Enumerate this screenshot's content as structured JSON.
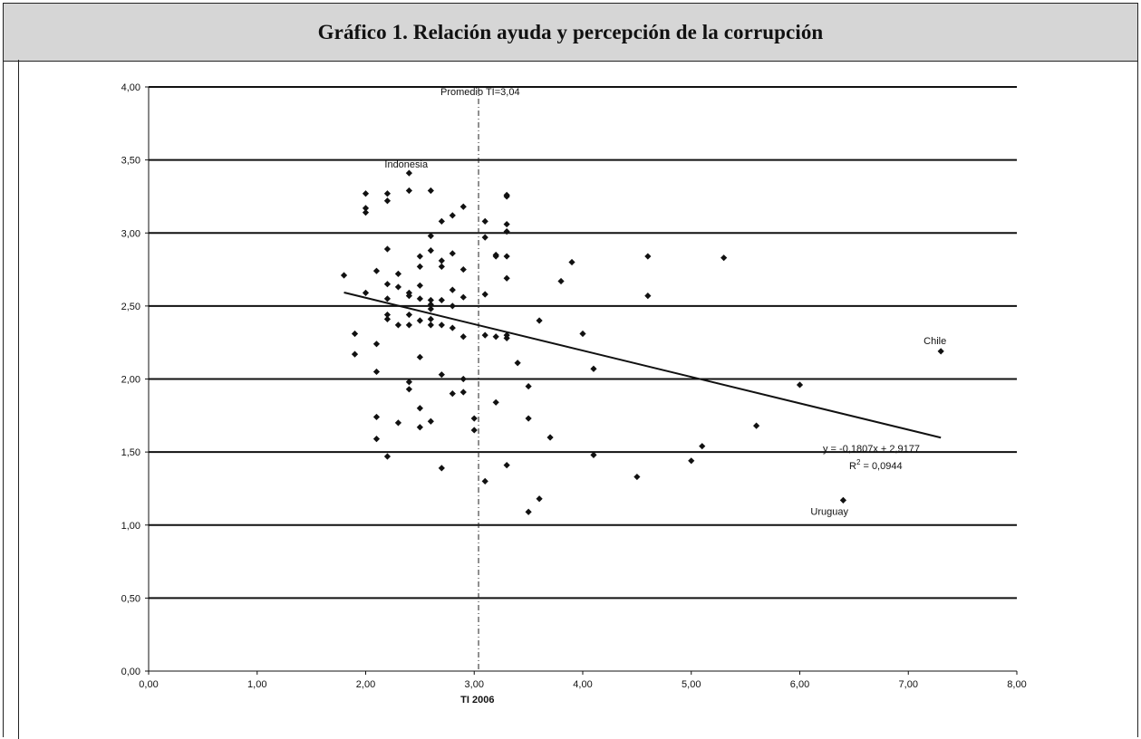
{
  "chart_data": {
    "type": "scatter",
    "title": "Gráfico 1. Relación ayuda y percepción de la corrupción",
    "xlabel": "TI 2006",
    "ylabel": "",
    "xlim": [
      0,
      8
    ],
    "ylim": [
      0,
      4
    ],
    "x_ticks": [
      "0,00",
      "1,00",
      "2,00",
      "3,00",
      "4,00",
      "5,00",
      "6,00",
      "7,00",
      "8,00"
    ],
    "y_ticks": [
      "0,00",
      "0,50",
      "1,00",
      "1,50",
      "2,00",
      "2,50",
      "3,00",
      "3,50",
      "4,00"
    ],
    "grid": "horizontal",
    "reference_line": {
      "x": 3.04,
      "label": "Promedio TI=3,04"
    },
    "trendline": {
      "slope": -0.1807,
      "intercept": 2.9177,
      "x_range": [
        1.8,
        7.3
      ],
      "equation": "y = -0,1807x + 2,9177",
      "r2_prefix": "R",
      "r2_exp": "2",
      "r2_value": " = 0,0944"
    },
    "annotations": [
      {
        "text": "Indonesia",
        "x": 2.4,
        "y": 3.41
      },
      {
        "text": "Chile",
        "x": 7.3,
        "y": 2.19
      },
      {
        "text": "Uruguay",
        "x": 6.4,
        "y": 1.17
      }
    ],
    "series": [
      {
        "points": [
          [
            1.8,
            2.71
          ],
          [
            1.9,
            2.31
          ],
          [
            1.9,
            2.17
          ],
          [
            2.0,
            3.27
          ],
          [
            2.0,
            3.17
          ],
          [
            2.0,
            3.14
          ],
          [
            2.0,
            2.59
          ],
          [
            2.1,
            2.74
          ],
          [
            2.1,
            2.24
          ],
          [
            2.1,
            2.05
          ],
          [
            2.1,
            1.74
          ],
          [
            2.1,
            1.59
          ],
          [
            2.2,
            3.27
          ],
          [
            2.2,
            3.22
          ],
          [
            2.2,
            2.89
          ],
          [
            2.2,
            2.65
          ],
          [
            2.2,
            2.55
          ],
          [
            2.2,
            2.44
          ],
          [
            2.2,
            2.41
          ],
          [
            2.2,
            1.47
          ],
          [
            2.3,
            2.72
          ],
          [
            2.3,
            2.63
          ],
          [
            2.3,
            2.37
          ],
          [
            2.3,
            1.7
          ],
          [
            2.4,
            3.41
          ],
          [
            2.4,
            3.29
          ],
          [
            2.4,
            2.59
          ],
          [
            2.4,
            2.57
          ],
          [
            2.4,
            2.44
          ],
          [
            2.4,
            2.37
          ],
          [
            2.4,
            1.98
          ],
          [
            2.4,
            1.93
          ],
          [
            2.5,
            2.84
          ],
          [
            2.5,
            2.77
          ],
          [
            2.5,
            2.64
          ],
          [
            2.5,
            2.55
          ],
          [
            2.5,
            2.4
          ],
          [
            2.5,
            2.15
          ],
          [
            2.5,
            1.8
          ],
          [
            2.5,
            1.67
          ],
          [
            2.6,
            3.29
          ],
          [
            2.6,
            2.98
          ],
          [
            2.6,
            2.88
          ],
          [
            2.6,
            2.54
          ],
          [
            2.6,
            2.51
          ],
          [
            2.6,
            2.48
          ],
          [
            2.6,
            2.41
          ],
          [
            2.6,
            2.37
          ],
          [
            2.6,
            1.71
          ],
          [
            2.7,
            3.08
          ],
          [
            2.7,
            2.81
          ],
          [
            2.7,
            2.77
          ],
          [
            2.7,
            2.54
          ],
          [
            2.7,
            2.37
          ],
          [
            2.7,
            2.03
          ],
          [
            2.7,
            1.39
          ],
          [
            2.8,
            3.12
          ],
          [
            2.8,
            2.86
          ],
          [
            2.8,
            2.61
          ],
          [
            2.8,
            2.5
          ],
          [
            2.8,
            2.35
          ],
          [
            2.8,
            1.9
          ],
          [
            2.9,
            3.18
          ],
          [
            2.9,
            2.75
          ],
          [
            2.9,
            2.56
          ],
          [
            2.9,
            2.29
          ],
          [
            2.9,
            2.0
          ],
          [
            2.9,
            1.91
          ],
          [
            3.0,
            1.73
          ],
          [
            3.0,
            1.65
          ],
          [
            3.1,
            3.08
          ],
          [
            3.1,
            2.97
          ],
          [
            3.1,
            2.58
          ],
          [
            3.1,
            2.3
          ],
          [
            3.1,
            1.3
          ],
          [
            3.2,
            2.85
          ],
          [
            3.2,
            2.84
          ],
          [
            3.2,
            2.29
          ],
          [
            3.2,
            1.84
          ],
          [
            3.3,
            3.26
          ],
          [
            3.3,
            3.25
          ],
          [
            3.3,
            3.06
          ],
          [
            3.3,
            3.01
          ],
          [
            3.3,
            2.84
          ],
          [
            3.3,
            2.69
          ],
          [
            3.3,
            2.3
          ],
          [
            3.3,
            2.28
          ],
          [
            3.3,
            1.41
          ],
          [
            3.4,
            2.11
          ],
          [
            3.5,
            1.95
          ],
          [
            3.5,
            1.73
          ],
          [
            3.5,
            1.09
          ],
          [
            3.6,
            2.4
          ],
          [
            3.6,
            1.18
          ],
          [
            3.7,
            1.6
          ],
          [
            3.8,
            2.67
          ],
          [
            3.9,
            2.8
          ],
          [
            4.0,
            2.31
          ],
          [
            4.1,
            2.07
          ],
          [
            4.1,
            1.48
          ],
          [
            4.5,
            1.33
          ],
          [
            4.6,
            2.84
          ],
          [
            4.6,
            2.57
          ],
          [
            5.0,
            1.44
          ],
          [
            5.1,
            1.54
          ],
          [
            5.3,
            2.83
          ],
          [
            5.6,
            1.68
          ],
          [
            6.0,
            1.96
          ],
          [
            6.4,
            1.17
          ],
          [
            7.3,
            2.19
          ]
        ]
      }
    ]
  }
}
